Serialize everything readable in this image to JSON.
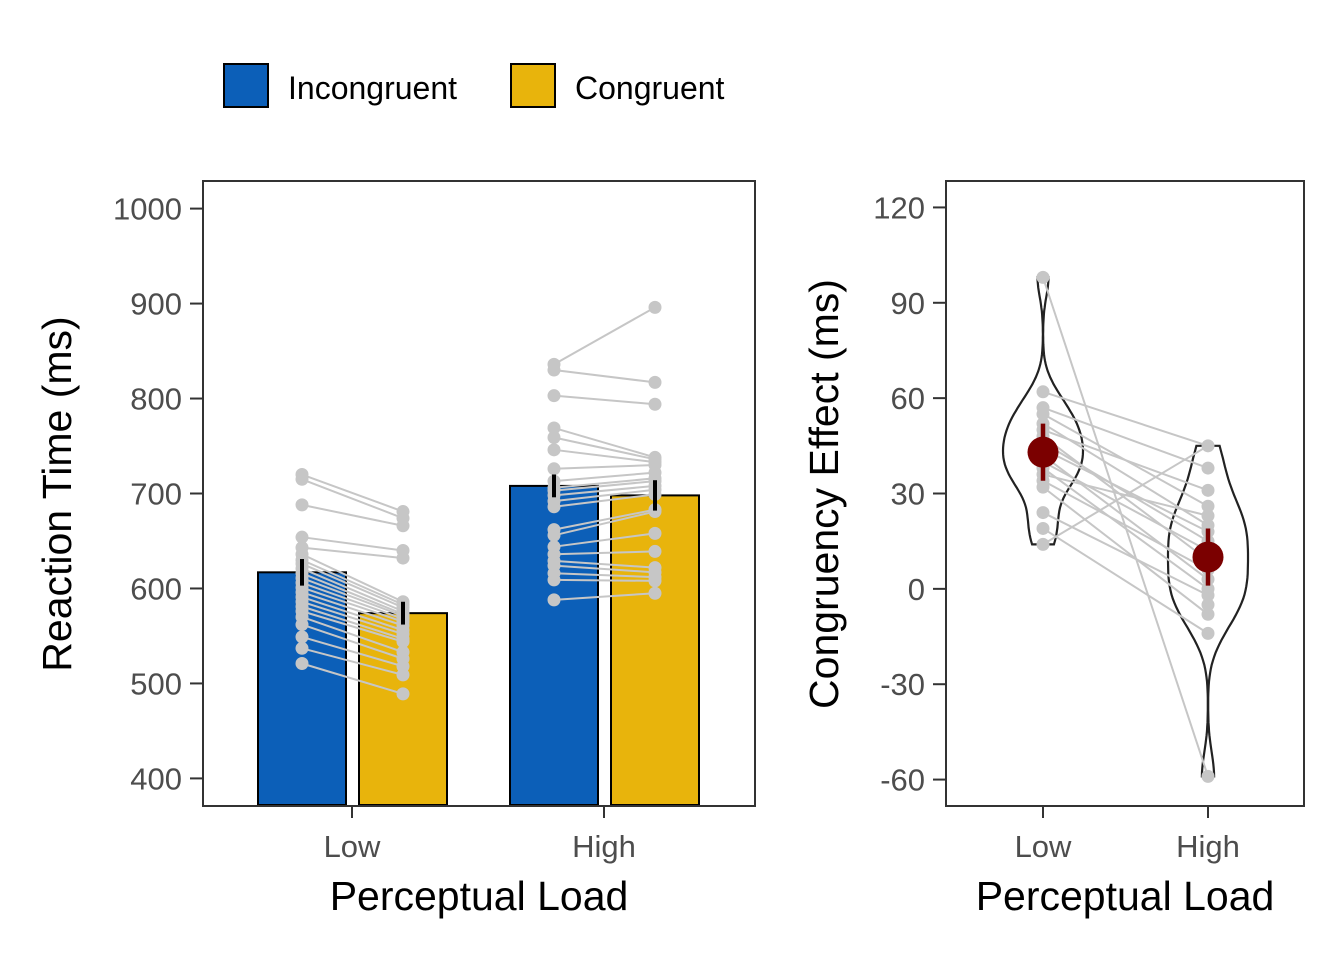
{
  "legend": {
    "items": [
      {
        "label": "Incongruent",
        "color": "#0c5fb8"
      },
      {
        "label": "Congruent",
        "color": "#e8b40c"
      }
    ]
  },
  "colors": {
    "incongruent": "#0c5fb8",
    "congruent": "#e8b40c",
    "participant_points": "#c6c6c6",
    "summary": "#7b0000",
    "frame": "#333333"
  },
  "chart_data": [
    {
      "type": "bar",
      "xlabel": "Perceptual Load",
      "ylabel": "Reaction Time (ms)",
      "categories": [
        "Low",
        "High"
      ],
      "ylim": [
        372,
        1028
      ],
      "yticks": [
        400,
        500,
        600,
        700,
        800,
        900,
        1000
      ],
      "series": [
        {
          "name": "Incongruent",
          "values": [
            617,
            708
          ],
          "errors": [
            14,
            12
          ]
        },
        {
          "name": "Congruent",
          "values": [
            574,
            698
          ],
          "errors": [
            12,
            16
          ]
        }
      ],
      "participants": {
        "Low": {
          "incongruent": [
            720,
            715,
            688,
            654,
            643,
            636,
            630,
            626,
            621,
            616,
            611,
            606,
            601,
            596,
            591,
            586,
            581,
            576,
            570,
            562,
            549,
            537,
            521
          ],
          "congruent": [
            681,
            674,
            666,
            640,
            632,
            586,
            583,
            580,
            576,
            573,
            571,
            568,
            565,
            561,
            556,
            552,
            547,
            544,
            533,
            526,
            518,
            509,
            489
          ]
        },
        "High": {
          "incongruent": [
            836,
            830,
            803,
            769,
            759,
            746,
            726,
            713,
            706,
            703,
            698,
            692,
            686,
            662,
            656,
            644,
            636,
            629,
            624,
            616,
            609,
            588
          ],
          "congruent": [
            896,
            817,
            794,
            738,
            736,
            733,
            730,
            722,
            716,
            713,
            708,
            704,
            699,
            683,
            681,
            658,
            639,
            622,
            617,
            612,
            608,
            595
          ]
        }
      }
    },
    {
      "type": "violin",
      "xlabel": "Perceptual Load",
      "ylabel": "Congruency Effect (ms)",
      "categories": [
        "Low",
        "High"
      ],
      "ylim": [
        -68,
        128
      ],
      "yticks": [
        -60,
        -30,
        0,
        30,
        60,
        90,
        120
      ],
      "means": [
        43,
        10
      ],
      "errors": [
        9,
        9
      ],
      "participants": {
        "Low": [
          98,
          62,
          57,
          55,
          52,
          50,
          48,
          46,
          44,
          42,
          40,
          38,
          36,
          34,
          32,
          24,
          19,
          14
        ],
        "High": [
          45,
          38,
          31,
          26,
          23,
          20,
          18,
          15,
          12,
          9,
          6,
          3,
          0,
          -2,
          -5,
          -8,
          -14,
          -59
        ]
      },
      "links": [
        [
          98,
          -59
        ],
        [
          62,
          45
        ],
        [
          57,
          38
        ],
        [
          55,
          26
        ],
        [
          52,
          20
        ],
        [
          50,
          31
        ],
        [
          48,
          9
        ],
        [
          46,
          15
        ],
        [
          44,
          18
        ],
        [
          42,
          3
        ],
        [
          40,
          12
        ],
        [
          38,
          0
        ],
        [
          36,
          23
        ],
        [
          34,
          6
        ],
        [
          32,
          -8
        ],
        [
          24,
          -2
        ],
        [
          19,
          -14
        ],
        [
          14,
          45
        ]
      ]
    }
  ]
}
